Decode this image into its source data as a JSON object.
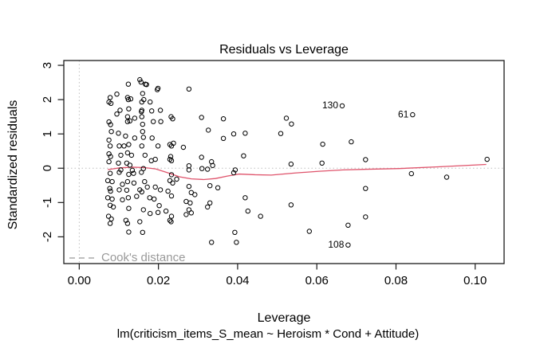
{
  "colors": {
    "smooth_line": "#DF536B",
    "reference_dotted": "#BEBEBE",
    "legend_gray": "#999999",
    "axis": "#1a1a1a",
    "point_stroke": "#000000",
    "background": "#ffffff"
  },
  "chart_data": {
    "type": "scatter",
    "title": "Residuals vs Leverage",
    "xlabel": "Leverage",
    "ylabel": "Standardized residuals",
    "sub_caption": "lm(criticism_items_S_mean ~ Heroism * Cond + Attitude)",
    "xlim": [
      -0.0039,
      0.1073
    ],
    "ylim": [
      -2.78,
      3.14
    ],
    "x_ticks": [
      0.0,
      0.02,
      0.04,
      0.06,
      0.08,
      0.1
    ],
    "x_tick_labels": [
      "0.00",
      "0.02",
      "0.04",
      "0.06",
      "0.08",
      "0.10"
    ],
    "y_ticks": [
      -2,
      -1,
      0,
      1,
      2,
      3
    ],
    "y_tick_labels": [
      "-2",
      "-1",
      "0",
      "1",
      "2",
      "3"
    ],
    "grid": false,
    "reference_lines": {
      "horizontal_at": 0,
      "vertical_at": 0
    },
    "legend": {
      "label": "Cook's distance",
      "position": "bottom-left",
      "style": "dashed"
    },
    "labeled_points": [
      {
        "label": "130",
        "x": 0.0664,
        "y": 1.82
      },
      {
        "label": "61",
        "x": 0.0842,
        "y": 1.56
      },
      {
        "label": "108",
        "x": 0.0679,
        "y": -2.24
      }
    ],
    "smooth_line": [
      [
        0.0072,
        -0.04
      ],
      [
        0.0102,
        0.01
      ],
      [
        0.0132,
        0.03
      ],
      [
        0.0163,
        0.02
      ],
      [
        0.0193,
        -0.02
      ],
      [
        0.0223,
        -0.13
      ],
      [
        0.0253,
        -0.25
      ],
      [
        0.0283,
        -0.31
      ],
      [
        0.0314,
        -0.33
      ],
      [
        0.0344,
        -0.3
      ],
      [
        0.0374,
        -0.23
      ],
      [
        0.0404,
        -0.17
      ],
      [
        0.0444,
        -0.19
      ],
      [
        0.0485,
        -0.2
      ],
      [
        0.0545,
        -0.14
      ],
      [
        0.0605,
        -0.09
      ],
      [
        0.0666,
        -0.05
      ],
      [
        0.0726,
        -0.03
      ],
      [
        0.0807,
        -0.01
      ],
      [
        0.0907,
        0.04
      ],
      [
        0.1028,
        0.11
      ]
    ],
    "points": [
      [
        0.0124,
        2.45
      ],
      [
        0.0153,
        2.58
      ],
      [
        0.0167,
        2.45
      ],
      [
        0.0156,
        2.51
      ],
      [
        0.017,
        2.44
      ],
      [
        0.0197,
        2.29
      ],
      [
        0.0199,
        2.33
      ],
      [
        0.0095,
        2.16
      ],
      [
        0.0078,
        2.06
      ],
      [
        0.016,
        2.18
      ],
      [
        0.0122,
        2.06
      ],
      [
        0.0124,
        2.0
      ],
      [
        0.013,
        2.02
      ],
      [
        0.0075,
        1.93
      ],
      [
        0.008,
        1.89
      ],
      [
        0.0158,
        1.93
      ],
      [
        0.0163,
        2.0
      ],
      [
        0.0179,
        1.93
      ],
      [
        0.0103,
        1.69
      ],
      [
        0.0125,
        1.73
      ],
      [
        0.0157,
        1.65
      ],
      [
        0.0183,
        1.67
      ],
      [
        0.0095,
        1.58
      ],
      [
        0.0122,
        1.5
      ],
      [
        0.014,
        1.46
      ],
      [
        0.0158,
        1.69
      ],
      [
        0.0158,
        1.5
      ],
      [
        0.0205,
        1.69
      ],
      [
        0.0232,
        1.5
      ],
      [
        0.0075,
        1.35
      ],
      [
        0.0079,
        1.27
      ],
      [
        0.0122,
        1.36
      ],
      [
        0.0128,
        1.38
      ],
      [
        0.016,
        1.28
      ],
      [
        0.0187,
        1.36
      ],
      [
        0.0206,
        1.36
      ],
      [
        0.0081,
        1.07
      ],
      [
        0.0099,
        1.02
      ],
      [
        0.0117,
        0.94
      ],
      [
        0.014,
        0.88
      ],
      [
        0.016,
        1.07
      ],
      [
        0.0162,
        0.9
      ],
      [
        0.0184,
        0.88
      ],
      [
        0.0075,
        0.82
      ],
      [
        0.0078,
        0.65
      ],
      [
        0.0101,
        0.65
      ],
      [
        0.0113,
        0.65
      ],
      [
        0.0125,
        0.69
      ],
      [
        0.0158,
        0.65
      ],
      [
        0.0199,
        0.65
      ],
      [
        0.0229,
        0.69
      ],
      [
        0.0238,
        0.73
      ],
      [
        0.0075,
        0.42
      ],
      [
        0.0079,
        0.34
      ],
      [
        0.0105,
        0.38
      ],
      [
        0.0122,
        0.45
      ],
      [
        0.0132,
        0.38
      ],
      [
        0.0166,
        0.38
      ],
      [
        0.0182,
        0.22
      ],
      [
        0.0192,
        0.26
      ],
      [
        0.0231,
        0.34
      ],
      [
        0.0075,
        0.19
      ],
      [
        0.0099,
        0.15
      ],
      [
        0.012,
        0.15
      ],
      [
        0.0128,
        0.09
      ],
      [
        0.0162,
        -0.01
      ],
      [
        0.0134,
        -0.06
      ],
      [
        0.0105,
        -0.05
      ],
      [
        0.0078,
        -0.15
      ],
      [
        0.0101,
        -0.12
      ],
      [
        0.0125,
        -0.18
      ],
      [
        0.0137,
        -0.15
      ],
      [
        0.0157,
        -0.12
      ],
      [
        0.0072,
        -0.36
      ],
      [
        0.0083,
        -0.39
      ],
      [
        0.0109,
        -0.47
      ],
      [
        0.0122,
        -0.39
      ],
      [
        0.0138,
        -0.43
      ],
      [
        0.0165,
        -0.39
      ],
      [
        0.0172,
        -0.55
      ],
      [
        0.0077,
        -0.59
      ],
      [
        0.0079,
        -0.67
      ],
      [
        0.0101,
        -0.63
      ],
      [
        0.012,
        -0.64
      ],
      [
        0.0153,
        -0.63
      ],
      [
        0.0158,
        -0.69
      ],
      [
        0.0192,
        -0.55
      ],
      [
        0.0205,
        -0.63
      ],
      [
        0.0224,
        -0.67
      ],
      [
        0.0072,
        -0.86
      ],
      [
        0.0083,
        -0.9
      ],
      [
        0.0109,
        -0.92
      ],
      [
        0.0124,
        -0.86
      ],
      [
        0.0145,
        -0.82
      ],
      [
        0.0178,
        -0.86
      ],
      [
        0.0189,
        -0.9
      ],
      [
        0.0202,
        -1.09
      ],
      [
        0.0078,
        -1.08
      ],
      [
        0.0086,
        -1.13
      ],
      [
        0.0125,
        -1.17
      ],
      [
        0.0162,
        -1.21
      ],
      [
        0.0179,
        -1.32
      ],
      [
        0.0074,
        -1.4
      ],
      [
        0.0081,
        -1.48
      ],
      [
        0.0118,
        -1.52
      ],
      [
        0.0153,
        -1.56
      ],
      [
        0.0199,
        -1.29
      ],
      [
        0.0219,
        -1.25
      ],
      [
        0.0078,
        -1.61
      ],
      [
        0.0122,
        -1.61
      ],
      [
        0.0125,
        -1.86
      ],
      [
        0.016,
        -1.87
      ],
      [
        0.0232,
        -1.56
      ],
      [
        0.0277,
        2.31
      ],
      [
        0.0236,
        1.44
      ],
      [
        0.0309,
        1.48
      ],
      [
        0.0364,
        1.44
      ],
      [
        0.0326,
        1.11
      ],
      [
        0.0364,
        0.87
      ],
      [
        0.039,
        1.0
      ],
      [
        0.0419,
        1.02
      ],
      [
        0.0263,
        0.61
      ],
      [
        0.0233,
        0.65
      ],
      [
        0.0309,
        0.32
      ],
      [
        0.0229,
        0.26
      ],
      [
        0.0233,
        0.22
      ],
      [
        0.0277,
        0.07
      ],
      [
        0.0334,
        0.19
      ],
      [
        0.0337,
        0.08
      ],
      [
        0.0415,
        0.36
      ],
      [
        0.0324,
        -0.03
      ],
      [
        0.0394,
        -0.05
      ],
      [
        0.0233,
        -0.19
      ],
      [
        0.0277,
        -0.05
      ],
      [
        0.031,
        -0.01
      ],
      [
        0.039,
        -0.13
      ],
      [
        0.0229,
        -0.36
      ],
      [
        0.0246,
        -0.32
      ],
      [
        0.0236,
        -0.43
      ],
      [
        0.0277,
        -0.53
      ],
      [
        0.0283,
        -0.71
      ],
      [
        0.0292,
        -0.77
      ],
      [
        0.0233,
        -0.81
      ],
      [
        0.027,
        -0.97
      ],
      [
        0.028,
        -1.01
      ],
      [
        0.033,
        -0.51
      ],
      [
        0.035,
        -0.57
      ],
      [
        0.0324,
        -1.13
      ],
      [
        0.033,
        -1.01
      ],
      [
        0.0277,
        -1.21
      ],
      [
        0.0283,
        -1.3
      ],
      [
        0.027,
        -1.35
      ],
      [
        0.0233,
        -1.4
      ],
      [
        0.0229,
        -1.52
      ],
      [
        0.0419,
        -0.86
      ],
      [
        0.0426,
        -1.25
      ],
      [
        0.0458,
        -1.4
      ],
      [
        0.0393,
        -1.87
      ],
      [
        0.0397,
        -2.16
      ],
      [
        0.0334,
        -2.16
      ],
      [
        0.0535,
        0.12
      ],
      [
        0.0613,
        0.15
      ],
      [
        0.0723,
        0.25
      ],
      [
        0.0723,
        -0.59
      ],
      [
        0.0535,
        -1.07
      ],
      [
        0.0723,
        -1.42
      ],
      [
        0.0679,
        -1.66
      ],
      [
        0.0581,
        -1.84
      ],
      [
        0.103,
        0.26
      ],
      [
        0.0839,
        -0.16
      ],
      [
        0.0928,
        -0.26
      ],
      [
        0.0523,
        1.46
      ],
      [
        0.0536,
        1.29
      ],
      [
        0.0509,
        1.01
      ],
      [
        0.0615,
        0.7
      ],
      [
        0.0687,
        0.77
      ]
    ]
  }
}
